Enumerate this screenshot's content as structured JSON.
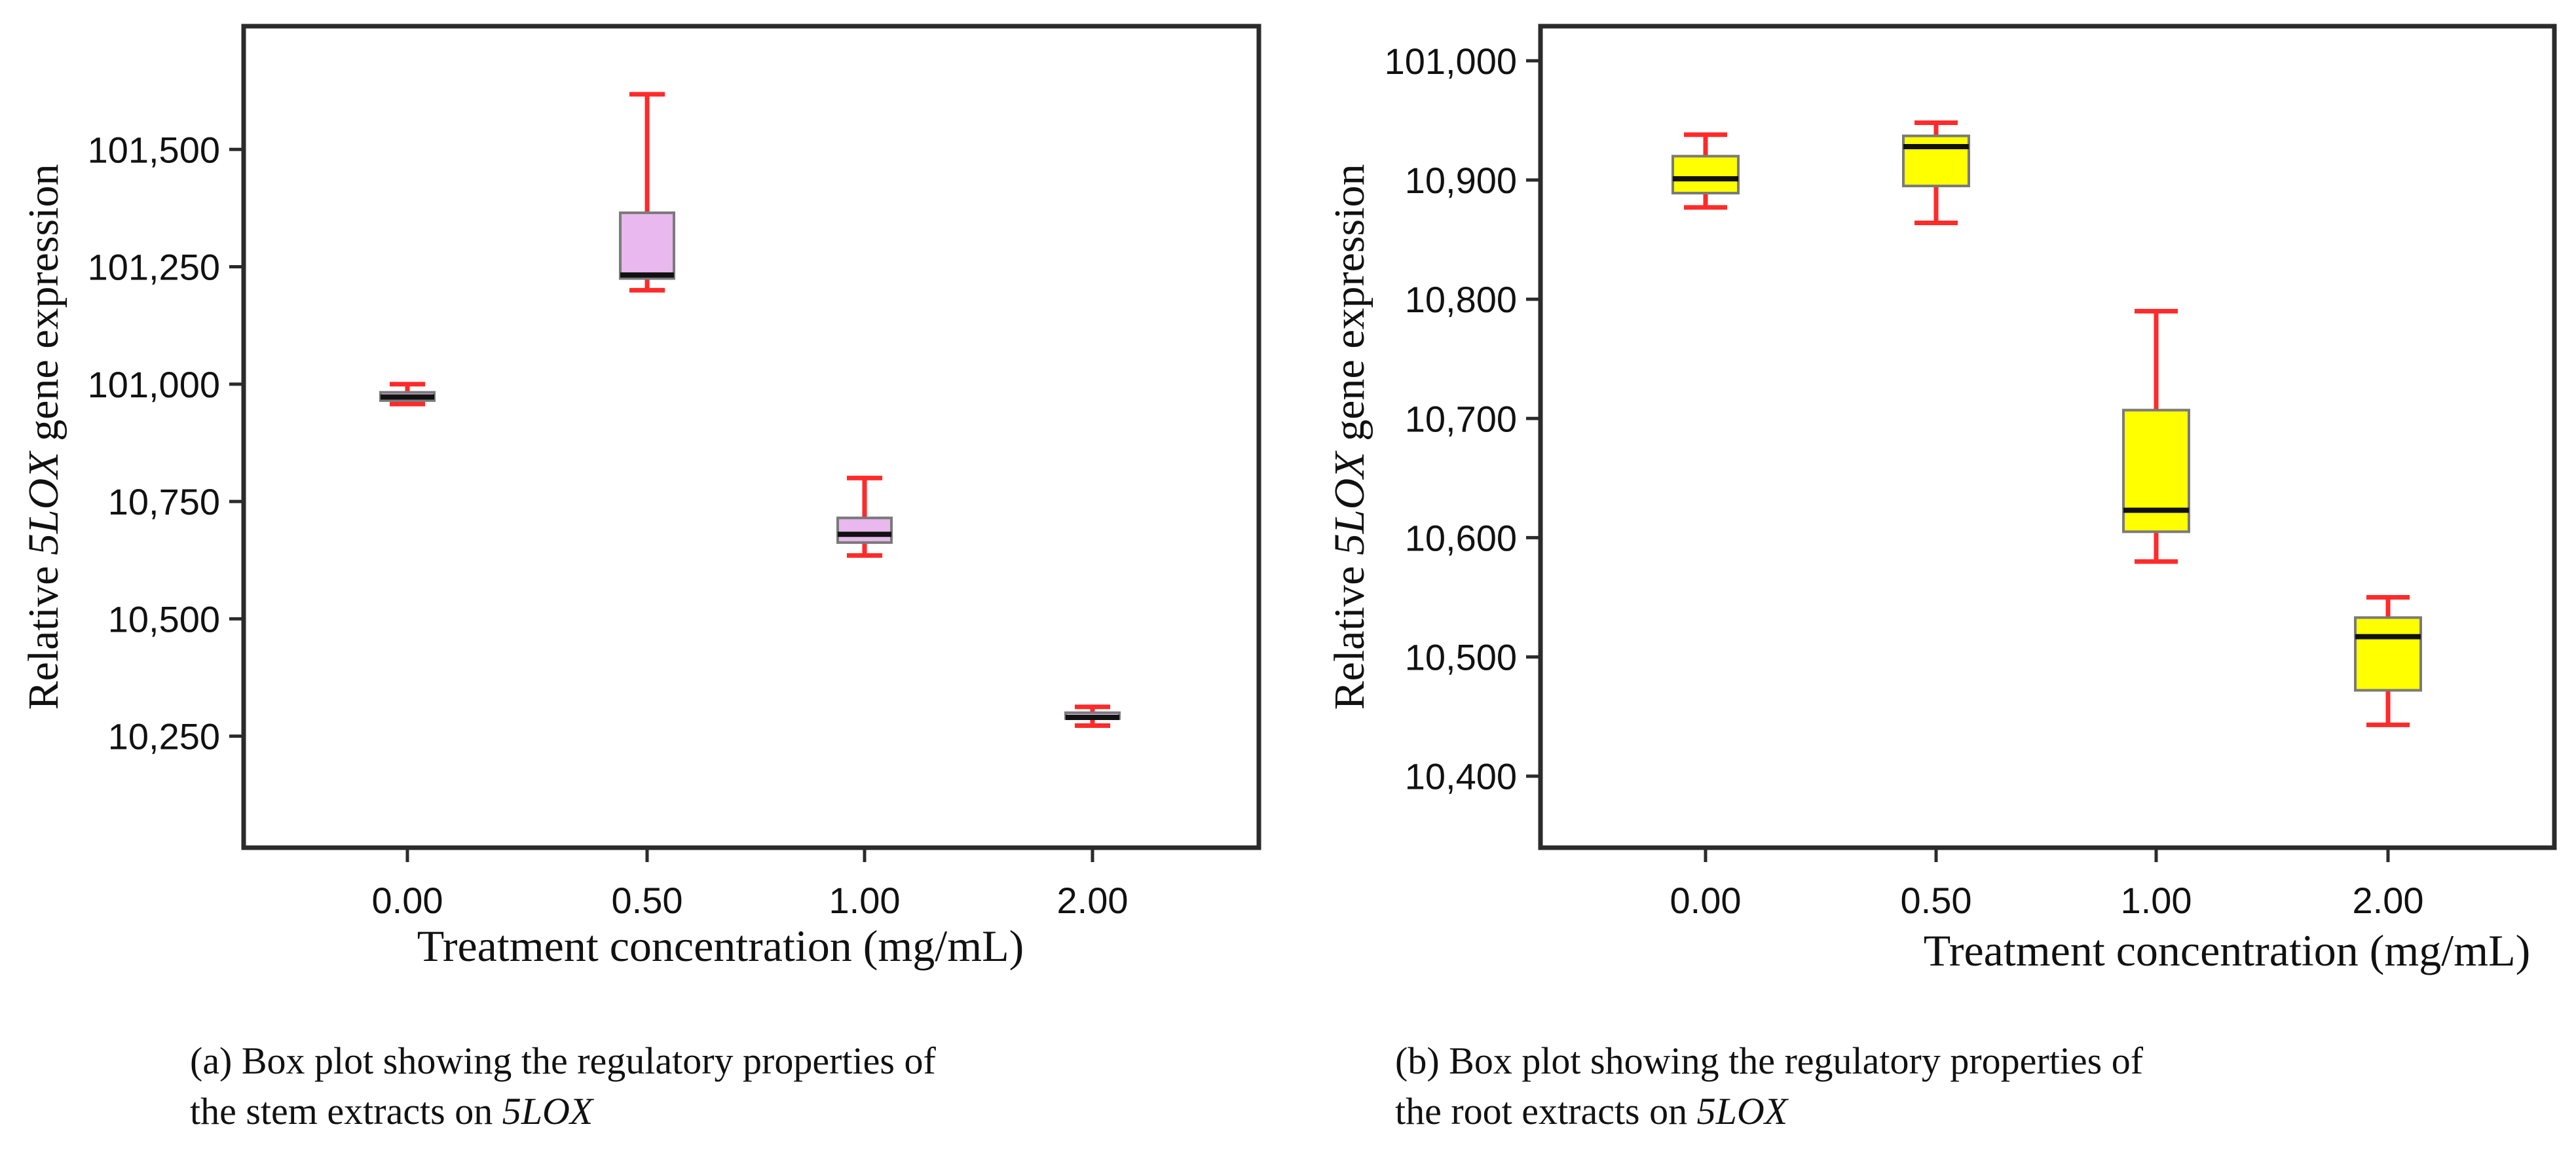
{
  "colors": {
    "whisker": "#ff2a2a",
    "median": "#111111",
    "box_stroke": "#7a7a7a",
    "frame": "#2b2b2b",
    "stem_fill": "#e8b8ee",
    "root_fill": "#ffff00"
  },
  "chart_data": [
    {
      "type": "box",
      "panel": "a",
      "ylabel_parts": [
        "Relative ",
        "5LOX",
        " gene expression"
      ],
      "xlabel": "Treatment concentration (mg/mL)",
      "caption_line1": "(a) Box plot showing the regulatory properties of",
      "caption_line2_prefix": "the stem extracts on ",
      "caption_line2_italic": "5LOX",
      "categories": [
        "0.00",
        "0.50",
        "1.00",
        "2.00"
      ],
      "y_ticks": [
        "10,250",
        "10,500",
        "10,750",
        "101,000",
        "101,250",
        "101,500"
      ],
      "y_tick_positions": [
        1,
        2,
        3,
        4,
        5,
        6
      ],
      "ylim": [
        0.05,
        7.05
      ],
      "boxes": [
        {
          "min": 3.83,
          "q1": 3.86,
          "median": 3.89,
          "q3": 3.93,
          "max": 4.0
        },
        {
          "min": 4.8,
          "q1": 4.9,
          "median": 4.93,
          "q3": 5.46,
          "max": 6.47
        },
        {
          "min": 2.54,
          "q1": 2.65,
          "median": 2.72,
          "q3": 2.86,
          "max": 3.2
        },
        {
          "min": 1.09,
          "q1": 1.15,
          "median": 1.16,
          "q3": 1.2,
          "max": 1.25
        }
      ]
    },
    {
      "type": "box",
      "panel": "b",
      "ylabel_parts": [
        "Relative ",
        "5LOX",
        " gene expression"
      ],
      "xlabel": "Treatment concentration (mg/mL)",
      "caption_line1": "(b) Box plot showing the regulatory properties of",
      "caption_line2_prefix": "the root extracts on ",
      "caption_line2_italic": "5LOX",
      "categories": [
        "0.00",
        "0.50",
        "1.00",
        "2.00"
      ],
      "y_ticks": [
        "10,400",
        "10,500",
        "10,600",
        "10,700",
        "10,800",
        "10,900",
        "101,000"
      ],
      "y_tick_positions": [
        1,
        2,
        3,
        4,
        5,
        6,
        7
      ],
      "ylim": [
        0.4,
        7.29
      ],
      "boxes": [
        {
          "min": 5.77,
          "q1": 5.89,
          "median": 6.01,
          "q3": 6.2,
          "max": 6.38
        },
        {
          "min": 5.64,
          "q1": 5.95,
          "median": 6.28,
          "q3": 6.37,
          "max": 6.48
        },
        {
          "min": 2.8,
          "q1": 3.05,
          "median": 3.23,
          "q3": 4.07,
          "max": 4.9
        },
        {
          "min": 1.43,
          "q1": 1.72,
          "median": 2.17,
          "q3": 2.33,
          "max": 2.5
        }
      ]
    }
  ]
}
